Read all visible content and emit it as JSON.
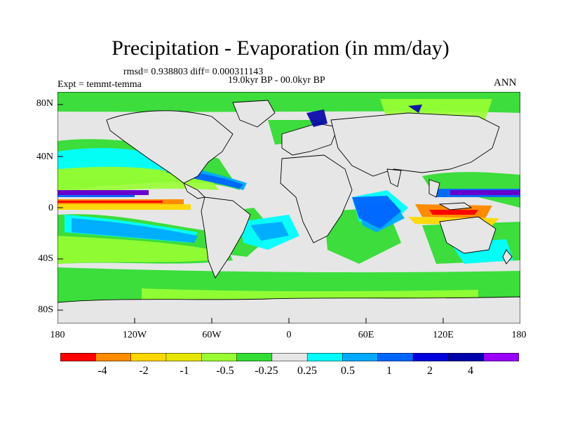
{
  "header": {
    "title": "Precipitation - Evaporation (in mm/day)",
    "stats": "rmsd= 0.938803 diff= 0.000311143",
    "period": "19.0kyr BP - 00.0kyr BP",
    "experiment": "Expt = temmt-temma",
    "season": "ANN"
  },
  "map": {
    "projection": "cylindrical equidistant",
    "y_ticks": [
      "80N",
      "40N",
      "0",
      "40S",
      "80S"
    ],
    "x_ticks": [
      "180",
      "120W",
      "60W",
      "0",
      "60E",
      "120E",
      "180"
    ],
    "land_color": "#e6e6e6",
    "coastline_color": "#000000"
  },
  "colorbar": {
    "labels": [
      "-4",
      "-2",
      "-1",
      "-0.5",
      "-0.25",
      "0.25",
      "0.5",
      "1",
      "2",
      "4"
    ],
    "colors": [
      "#ff0000",
      "#ff8c00",
      "#ffd700",
      "#e6e600",
      "#99ff33",
      "#33dd33",
      "#e6e6e6",
      "#00ffff",
      "#00aaff",
      "#0066ff",
      "#0000dd",
      "#0000aa",
      "#9900ff"
    ]
  }
}
